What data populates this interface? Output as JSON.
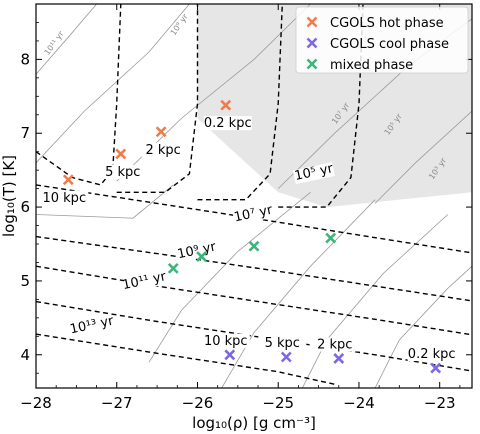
{
  "chart_data": {
    "type": "scatter",
    "xlabel": "log₁₀(ρ) [g cm⁻³]",
    "ylabel": "log₁₀(T) [K]",
    "xlim": [
      -28,
      -22.6
    ],
    "ylim": [
      3.55,
      8.75
    ],
    "xticks": [
      -28,
      -27,
      -26,
      -25,
      -24,
      -23
    ],
    "xtick_labels": [
      "−28",
      "−27",
      "−26",
      "−25",
      "−24",
      "−23"
    ],
    "yticks": [
      4,
      5,
      6,
      7,
      8
    ],
    "ytick_labels": [
      "4",
      "5",
      "6",
      "7",
      "8"
    ],
    "grid": false,
    "legend_position": "top-right",
    "series": [
      {
        "name": "CGOLS hot phase",
        "color": "#f07c4a",
        "marker": "x",
        "points": [
          {
            "x": -27.6,
            "y": 6.37,
            "label": "10 kpc"
          },
          {
            "x": -26.95,
            "y": 6.72,
            "label": "5 kpc"
          },
          {
            "x": -26.45,
            "y": 7.02,
            "label": "2 kpc"
          },
          {
            "x": -25.65,
            "y": 7.38,
            "label": "0.2 kpc"
          }
        ]
      },
      {
        "name": "CGOLS cool phase",
        "color": "#7b68e6",
        "marker": "x",
        "points": [
          {
            "x": -25.6,
            "y": 4.0,
            "label": "10 kpc"
          },
          {
            "x": -24.9,
            "y": 3.97,
            "label": "5 kpc"
          },
          {
            "x": -24.25,
            "y": 3.95,
            "label": "2 kpc"
          },
          {
            "x": -23.05,
            "y": 3.82,
            "label": "0.2 kpc"
          }
        ]
      },
      {
        "name": "mixed phase",
        "color": "#3bb57a",
        "marker": "x",
        "points": [
          {
            "x": -26.3,
            "y": 5.17
          },
          {
            "x": -25.95,
            "y": 5.33
          },
          {
            "x": -25.3,
            "y": 5.47
          },
          {
            "x": -24.35,
            "y": 5.58
          }
        ]
      }
    ],
    "cooling_time_contours": [
      {
        "label": "10⁵ yr",
        "style": "dashed",
        "points": [
          [
            -28,
            6.75
          ],
          [
            -27.55,
            6.4
          ],
          [
            -27.2,
            6.3
          ],
          [
            -27.05,
            6.5
          ],
          [
            -27.0,
            7.4
          ],
          [
            -26.95,
            8.75
          ]
        ]
      },
      {
        "label": "",
        "style": "dashed",
        "points": [
          [
            -27.0,
            6.2
          ],
          [
            -26.4,
            6.2
          ],
          [
            -26.1,
            6.45
          ],
          [
            -26.0,
            7.4
          ],
          [
            -26.0,
            8.75
          ]
        ]
      },
      {
        "label": "",
        "style": "dashed",
        "points": [
          [
            -26.0,
            6.1
          ],
          [
            -25.4,
            6.1
          ],
          [
            -25.1,
            6.45
          ],
          [
            -25.0,
            7.4
          ],
          [
            -24.95,
            8.75
          ]
        ]
      },
      {
        "label": "10⁵ yr",
        "style": "dashed",
        "points": [
          [
            -25.0,
            6.0
          ],
          [
            -24.4,
            6.0
          ],
          [
            -24.1,
            6.4
          ],
          [
            -24.0,
            7.4
          ],
          [
            -23.95,
            8.75
          ]
        ]
      },
      {
        "label": "10⁷ yr",
        "style": "dashed",
        "points": [
          [
            -28.0,
            6.3
          ],
          [
            -26.5,
            6.05
          ],
          [
            -25.2,
            5.83
          ],
          [
            -24.0,
            5.62
          ],
          [
            -22.6,
            5.38
          ]
        ]
      },
      {
        "label": "10⁹ yr",
        "style": "dashed",
        "points": [
          [
            -28.0,
            5.6
          ],
          [
            -26.5,
            5.37
          ],
          [
            -25.0,
            5.13
          ],
          [
            -23.8,
            4.93
          ],
          [
            -22.6,
            4.73
          ]
        ]
      },
      {
        "label": "10¹¹ yr",
        "style": "dashed",
        "points": [
          [
            -28.0,
            5.2
          ],
          [
            -26.5,
            4.93
          ],
          [
            -25.0,
            4.68
          ],
          [
            -23.8,
            4.48
          ],
          [
            -22.6,
            4.27
          ]
        ]
      },
      {
        "label": "10¹³ yr",
        "style": "dashed",
        "points": [
          [
            -28.0,
            4.72
          ],
          [
            -26.5,
            4.45
          ],
          [
            -25.0,
            4.2
          ],
          [
            -23.8,
            4.0
          ],
          [
            -22.6,
            3.78
          ]
        ]
      },
      {
        "label": "",
        "style": "dashed",
        "points": [
          [
            -28.0,
            4.28
          ],
          [
            -26.5,
            4.02
          ],
          [
            -25.0,
            3.77
          ],
          [
            -24.3,
            3.6
          ]
        ]
      }
    ],
    "thin_contours": [
      {
        "label": "10¹¹ yr",
        "points": [
          [
            -28.0,
            7.8
          ],
          [
            -27.6,
            8.3
          ],
          [
            -27.25,
            8.75
          ]
        ]
      },
      {
        "label": "10⁹ yr",
        "points": [
          [
            -28.0,
            6.6
          ],
          [
            -27.4,
            7.3
          ],
          [
            -26.6,
            8.1
          ],
          [
            -26.1,
            8.75
          ]
        ]
      },
      {
        "label": "10⁷ yr",
        "points": [
          [
            -27.0,
            6.35
          ],
          [
            -26.2,
            7.2
          ],
          [
            -25.3,
            8.0
          ],
          [
            -24.6,
            8.75
          ]
        ]
      },
      {
        "label": "10⁵ yr",
        "points": [
          [
            -25.0,
            6.25
          ],
          [
            -24.3,
            7.0
          ],
          [
            -23.4,
            7.9
          ],
          [
            -22.6,
            8.55
          ]
        ]
      },
      {
        "label": "10³ yr",
        "points": [
          [
            -23.8,
            6.05
          ],
          [
            -23.3,
            6.6
          ],
          [
            -22.6,
            7.3
          ]
        ]
      },
      {
        "label": "",
        "points": [
          [
            -28.0,
            5.9
          ],
          [
            -26.8,
            5.85
          ],
          [
            -26.3,
            6.3
          ]
        ]
      },
      {
        "label": "",
        "points": [
          [
            -26.6,
            3.9
          ],
          [
            -26.2,
            4.6
          ],
          [
            -25.5,
            5.4
          ],
          [
            -24.6,
            6.2
          ]
        ]
      },
      {
        "label": "",
        "points": [
          [
            -25.7,
            3.55
          ],
          [
            -25.3,
            4.3
          ],
          [
            -24.6,
            5.2
          ],
          [
            -23.8,
            6.1
          ]
        ]
      },
      {
        "label": "",
        "points": [
          [
            -24.7,
            3.55
          ],
          [
            -24.4,
            4.2
          ],
          [
            -23.7,
            5.1
          ],
          [
            -22.9,
            5.9
          ]
        ]
      },
      {
        "label": "",
        "points": [
          [
            -23.8,
            3.55
          ],
          [
            -23.5,
            4.2
          ],
          [
            -22.9,
            4.9
          ],
          [
            -22.6,
            5.2
          ]
        ]
      }
    ],
    "shaded_region": {
      "color": "#e6e6e6",
      "x_start": -26.0,
      "y_start": 6.2
    },
    "contour_labels": [
      {
        "text": "10⁵ yr",
        "x": -24.55,
        "y": 6.42,
        "kind": "dashed"
      },
      {
        "text": "10⁷ yr",
        "x": -25.3,
        "y": 5.86,
        "kind": "dashed"
      },
      {
        "text": "10⁹ yr",
        "x": -26.0,
        "y": 5.36,
        "kind": "dashed"
      },
      {
        "text": "10¹¹ yr",
        "x": -26.65,
        "y": 4.95,
        "kind": "dashed"
      },
      {
        "text": "10¹³ yr",
        "x": -27.3,
        "y": 4.35,
        "kind": "dashed"
      },
      {
        "text": "10¹¹ yr",
        "x": -27.75,
        "y": 8.2,
        "kind": "thin"
      },
      {
        "text": "10⁹ yr",
        "x": -26.2,
        "y": 8.45,
        "kind": "thin"
      },
      {
        "text": "10⁷ yr",
        "x": -24.2,
        "y": 7.25,
        "kind": "thin"
      },
      {
        "text": "10⁵ yr",
        "x": -23.55,
        "y": 7.1,
        "kind": "thin"
      },
      {
        "text": "10³ yr",
        "x": -23.0,
        "y": 6.5,
        "kind": "thin"
      }
    ]
  }
}
